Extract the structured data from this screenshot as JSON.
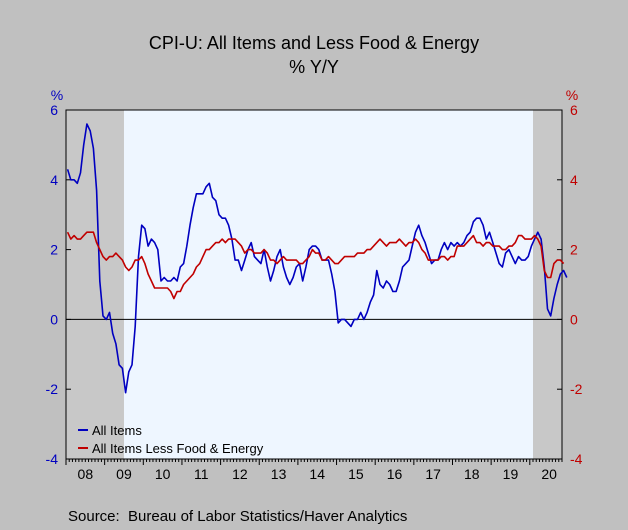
{
  "chart_data": {
    "type": "line",
    "title": "CPI-U: All Items and Less Food & Energy",
    "subtitle": "% Y/Y",
    "left_axis_unit": "%",
    "right_axis_unit": "%",
    "ylim": [
      -4,
      6
    ],
    "y_ticks": [
      -4,
      -2,
      0,
      2,
      4,
      6
    ],
    "x_range": [
      "2008-01",
      "2020-10"
    ],
    "x_ticks": [
      "08",
      "09",
      "10",
      "11",
      "12",
      "13",
      "14",
      "15",
      "16",
      "17",
      "18",
      "19",
      "20"
    ],
    "recessions": [
      [
        "2008-01",
        "2009-06"
      ],
      [
        "2020-02",
        "2020-10"
      ]
    ],
    "zero_line": true,
    "legend_position": "bottom-left",
    "source": "Source:  Bureau of Labor Statistics/Haver Analytics",
    "series": [
      {
        "name": "All Items",
        "color": "#0000c0",
        "start": "2008-01",
        "values": [
          4.3,
          4.0,
          4.0,
          3.9,
          4.2,
          5.0,
          5.6,
          5.4,
          4.9,
          3.7,
          1.1,
          0.1,
          0.0,
          0.2,
          -0.4,
          -0.7,
          -1.3,
          -1.4,
          -2.1,
          -1.5,
          -1.3,
          -0.2,
          1.8,
          2.7,
          2.6,
          2.1,
          2.3,
          2.2,
          2.0,
          1.1,
          1.2,
          1.1,
          1.1,
          1.2,
          1.1,
          1.5,
          1.6,
          2.1,
          2.7,
          3.2,
          3.6,
          3.6,
          3.6,
          3.8,
          3.9,
          3.5,
          3.4,
          3.0,
          2.9,
          2.9,
          2.7,
          2.3,
          1.7,
          1.7,
          1.4,
          1.7,
          2.0,
          2.2,
          1.8,
          1.7,
          1.6,
          2.0,
          1.5,
          1.1,
          1.4,
          1.8,
          2.0,
          1.5,
          1.2,
          1.0,
          1.2,
          1.5,
          1.6,
          1.1,
          1.5,
          2.0,
          2.1,
          2.1,
          2.0,
          1.7,
          1.7,
          1.7,
          1.3,
          0.8,
          -0.1,
          0.0,
          0.0,
          -0.1,
          -0.2,
          0.0,
          0.0,
          0.2,
          -0.0,
          0.2,
          0.5,
          0.7,
          1.4,
          1.0,
          0.9,
          1.1,
          1.0,
          0.8,
          0.8,
          1.1,
          1.5,
          1.6,
          1.7,
          2.1,
          2.5,
          2.7,
          2.4,
          2.2,
          1.9,
          1.6,
          1.7,
          1.7,
          2.0,
          2.2,
          2.0,
          2.2,
          2.1,
          2.2,
          2.1,
          2.2,
          2.4,
          2.5,
          2.8,
          2.9,
          2.9,
          2.7,
          2.3,
          2.5,
          2.2,
          1.9,
          1.6,
          1.5,
          1.9,
          2.0,
          1.8,
          1.6,
          1.8,
          1.7,
          1.7,
          1.8,
          2.1,
          2.3,
          2.5,
          2.3,
          1.5,
          0.3,
          0.1,
          0.6,
          1.0,
          1.3,
          1.4,
          1.2
        ]
      },
      {
        "name": "All Items Less Food & Energy",
        "color": "#c00000",
        "start": "2008-01",
        "values": [
          2.5,
          2.3,
          2.4,
          2.3,
          2.3,
          2.4,
          2.5,
          2.5,
          2.5,
          2.2,
          2.0,
          1.8,
          1.7,
          1.8,
          1.8,
          1.9,
          1.8,
          1.7,
          1.5,
          1.4,
          1.5,
          1.7,
          1.7,
          1.8,
          1.6,
          1.3,
          1.1,
          0.9,
          0.9,
          0.9,
          0.9,
          0.9,
          0.8,
          0.6,
          0.8,
          0.8,
          1.0,
          1.1,
          1.2,
          1.3,
          1.5,
          1.6,
          1.8,
          2.0,
          2.0,
          2.1,
          2.2,
          2.2,
          2.3,
          2.2,
          2.3,
          2.3,
          2.3,
          2.2,
          2.1,
          1.9,
          2.0,
          2.0,
          1.9,
          1.9,
          1.9,
          2.0,
          1.9,
          1.7,
          1.7,
          1.6,
          1.7,
          1.8,
          1.7,
          1.7,
          1.7,
          1.7,
          1.6,
          1.6,
          1.7,
          1.8,
          2.0,
          1.9,
          1.9,
          1.7,
          1.7,
          1.8,
          1.7,
          1.6,
          1.6,
          1.7,
          1.8,
          1.8,
          1.8,
          1.8,
          1.9,
          1.9,
          1.9,
          2.0,
          2.0,
          2.1,
          2.2,
          2.3,
          2.2,
          2.1,
          2.2,
          2.2,
          2.2,
          2.3,
          2.2,
          2.1,
          2.2,
          2.2,
          2.3,
          2.2,
          2.0,
          1.9,
          1.7,
          1.7,
          1.7,
          1.7,
          1.8,
          1.8,
          1.7,
          1.8,
          1.8,
          2.1,
          2.1,
          2.1,
          2.2,
          2.3,
          2.4,
          2.2,
          2.2,
          2.1,
          2.2,
          2.2,
          2.1,
          2.1,
          2.1,
          2.0,
          2.0,
          2.1,
          2.1,
          2.2,
          2.4,
          2.4,
          2.3,
          2.3,
          2.3,
          2.4,
          2.3,
          2.1,
          1.4,
          1.2,
          1.2,
          1.6,
          1.7,
          1.7,
          1.6
        ]
      }
    ]
  }
}
